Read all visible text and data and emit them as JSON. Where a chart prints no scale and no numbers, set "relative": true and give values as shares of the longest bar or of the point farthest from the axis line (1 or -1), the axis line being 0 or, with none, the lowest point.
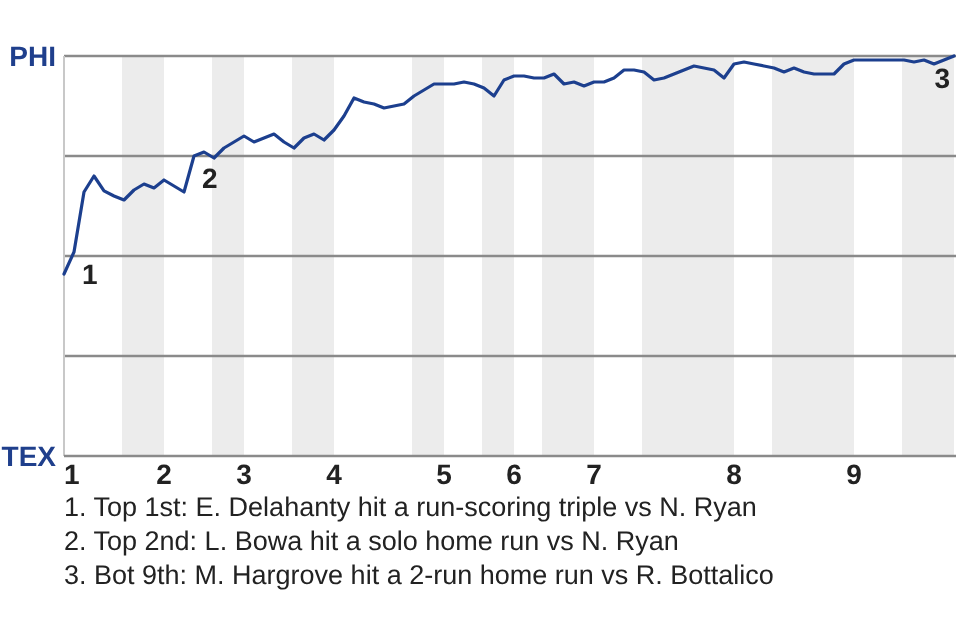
{
  "chart_data": {
    "type": "line",
    "relative": true,
    "categories": [
      "1",
      null,
      null,
      null,
      null,
      null,
      null,
      null,
      null,
      null,
      "2",
      null,
      null,
      null,
      null,
      null,
      null,
      null,
      "3",
      null,
      null,
      null,
      null,
      null,
      null,
      null,
      null,
      "4",
      null,
      null,
      null,
      null,
      null,
      null,
      null,
      null,
      null,
      null,
      "5",
      null,
      null,
      null,
      null,
      null,
      null,
      "6",
      null,
      null,
      null,
      null,
      null,
      null,
      null,
      "7",
      null,
      null,
      null,
      null,
      null,
      null,
      null,
      null,
      null,
      null,
      null,
      null,
      null,
      "8",
      null,
      null,
      null,
      null,
      null,
      null,
      null,
      null,
      null,
      null,
      null,
      "9",
      null,
      null,
      null,
      null,
      null,
      null,
      null,
      null,
      null,
      null
    ],
    "line_style": "solid",
    "marker": "none",
    "ref_lines": [
      {
        "axis": "y",
        "value": 0.25,
        "color": "#8a8a8a"
      },
      {
        "axis": "y",
        "value": 0.5,
        "color": "#8a8a8a"
      },
      {
        "axis": "y",
        "value": 0.75,
        "color": "#8a8a8a"
      },
      {
        "axis": "y",
        "value": 1,
        "color": "#8a8a8a"
      }
    ],
    "series": [
      {
        "color": "#1c3f8e",
        "values": [
          0.455,
          0.51,
          0.66,
          0.7,
          0.663,
          0.65,
          0.64,
          0.665,
          0.68,
          0.67,
          0.69,
          0.675,
          0.66,
          0.75,
          0.76,
          0.745,
          0.77,
          0.785,
          0.8,
          0.785,
          0.795,
          0.805,
          0.785,
          0.77,
          0.795,
          0.805,
          0.79,
          0.815,
          0.85,
          0.895,
          0.885,
          0.88,
          0.87,
          0.875,
          0.88,
          0.9,
          0.915,
          0.93,
          0.93,
          0.93,
          0.935,
          0.93,
          0.92,
          0.9,
          0.94,
          0.95,
          0.95,
          0.945,
          0.945,
          0.955,
          0.93,
          0.935,
          0.925,
          0.935,
          0.935,
          0.945,
          0.965,
          0.965,
          0.96,
          0.94,
          0.945,
          0.955,
          0.965,
          0.975,
          0.97,
          0.965,
          0.945,
          0.98,
          0.985,
          0.98,
          0.975,
          0.97,
          0.96,
          0.97,
          0.96,
          0.955,
          0.955,
          0.955,
          0.98,
          0.99,
          0.99,
          0.99,
          0.99,
          0.99,
          0.99,
          0.985,
          0.99,
          0.98,
          0.99,
          1
        ]
      }
    ],
    "annotations": [
      "PHI",
      "TEX",
      {
        "text": "1",
        "y": 0.51
      },
      {
        "text": "2",
        "y": 0.75
      },
      {
        "text": "3",
        "y": 1
      },
      "1. Top 1st: E. Delahanty hit a run-scoring triple vs N. Ryan",
      "2. Top 2nd: L. Bowa hit a solo home run vs N. Ryan",
      "3. Bot 9th: M. Hargrove hit a 2-run home run vs R. Bottalico"
    ]
  }
}
